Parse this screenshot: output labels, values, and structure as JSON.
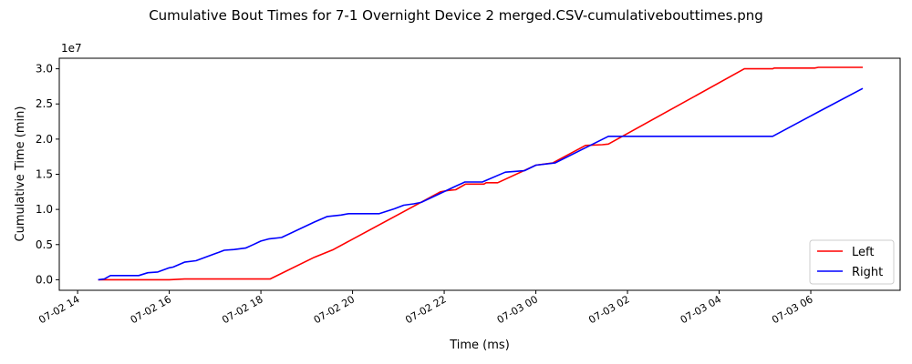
{
  "chart_data": {
    "type": "line",
    "title": "Cumulative Bout Times for 7-1 Overnight Device 2 merged.CSV-cumulativebouttimes.png",
    "xlabel": "Time (ms)",
    "ylabel": "Cumulative Time (min)",
    "y_offset_text": "1e7",
    "x_range_hours": [
      13.6,
      7.95
    ],
    "x_range_note": "hours of day, 07-02 13:36 to 07-03 07:57",
    "ylim": [
      -0.15,
      3.15
    ],
    "y_scale": 10000000,
    "x_tick_labels": [
      "07-02 14",
      "07-02 16",
      "07-02 18",
      "07-02 20",
      "07-02 22",
      "07-03 00",
      "07-03 02",
      "07-03 04",
      "07-03 06"
    ],
    "x_tick_hours": [
      14,
      16,
      18,
      20,
      22,
      24,
      26,
      28,
      30
    ],
    "y_ticks": [
      0.0,
      0.5,
      1.0,
      1.5,
      2.0,
      2.5,
      3.0
    ],
    "y_tick_labels": [
      "0.0",
      "0.5",
      "1.0",
      "1.5",
      "2.0",
      "2.5",
      "3.0"
    ],
    "legend_position": "lower-right",
    "grid": false,
    "series": [
      {
        "name": "Left",
        "color": "#ff0000",
        "points": [
          [
            "07-02 14:27",
            0.0
          ],
          [
            "07-02 16:00",
            0.0
          ],
          [
            "07-02 16:20",
            0.01
          ],
          [
            "07-02 18:12",
            0.01
          ],
          [
            "07-02 19:10",
            0.32
          ],
          [
            "07-02 19:35",
            0.43
          ],
          [
            "07-02 21:55",
            1.25
          ],
          [
            "07-02 22:05",
            1.27
          ],
          [
            "07-02 22:15",
            1.28
          ],
          [
            "07-02 22:28",
            1.36
          ],
          [
            "07-02 22:52",
            1.36
          ],
          [
            "07-02 22:55",
            1.38
          ],
          [
            "07-02 23:10",
            1.38
          ],
          [
            "07-03 00:00",
            1.63
          ],
          [
            "07-03 00:22",
            1.66
          ],
          [
            "07-03 01:05",
            1.91
          ],
          [
            "07-03 01:27",
            1.92
          ],
          [
            "07-03 01:35",
            1.93
          ],
          [
            "07-03 04:33",
            3.0
          ],
          [
            "07-03 05:10",
            3.0
          ],
          [
            "07-03 05:12",
            3.01
          ],
          [
            "07-03 06:05",
            3.01
          ],
          [
            "07-03 06:10",
            3.02
          ],
          [
            "07-03 07:08",
            3.02
          ]
        ]
      },
      {
        "name": "Right",
        "color": "#0000ff",
        "points": [
          [
            "07-02 14:27",
            0.0
          ],
          [
            "07-02 14:35",
            0.01
          ],
          [
            "07-02 14:43",
            0.06
          ],
          [
            "07-02 15:20",
            0.06
          ],
          [
            "07-02 15:32",
            0.1
          ],
          [
            "07-02 15:45",
            0.11
          ],
          [
            "07-02 16:00",
            0.17
          ],
          [
            "07-02 16:05",
            0.18
          ],
          [
            "07-02 16:20",
            0.25
          ],
          [
            "07-02 16:35",
            0.27
          ],
          [
            "07-02 17:00",
            0.37
          ],
          [
            "07-02 17:05",
            0.39
          ],
          [
            "07-02 17:12",
            0.42
          ],
          [
            "07-02 17:25",
            0.43
          ],
          [
            "07-02 17:40",
            0.45
          ],
          [
            "07-02 17:50",
            0.5
          ],
          [
            "07-02 18:00",
            0.55
          ],
          [
            "07-02 18:10",
            0.58
          ],
          [
            "07-02 18:27",
            0.6
          ],
          [
            "07-02 19:10",
            0.82
          ],
          [
            "07-02 19:27",
            0.9
          ],
          [
            "07-02 19:45",
            0.92
          ],
          [
            "07-02 19:55",
            0.94
          ],
          [
            "07-02 20:35",
            0.94
          ],
          [
            "07-02 20:55",
            1.01
          ],
          [
            "07-02 21:07",
            1.06
          ],
          [
            "07-02 21:20",
            1.08
          ],
          [
            "07-02 21:30",
            1.1
          ],
          [
            "07-02 22:15",
            1.33
          ],
          [
            "07-02 22:27",
            1.39
          ],
          [
            "07-02 22:50",
            1.39
          ],
          [
            "07-02 23:20",
            1.53
          ],
          [
            "07-02 23:45",
            1.55
          ],
          [
            "07-03 00:00",
            1.63
          ],
          [
            "07-03 00:25",
            1.66
          ],
          [
            "07-03 01:35",
            2.04
          ],
          [
            "07-03 05:10",
            2.04
          ],
          [
            "07-03 06:12",
            2.4
          ],
          [
            "07-03 07:08",
            2.72
          ]
        ]
      }
    ]
  }
}
